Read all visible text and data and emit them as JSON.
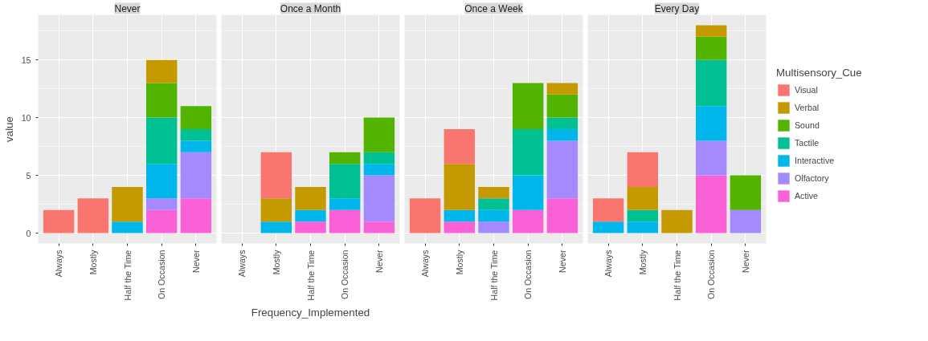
{
  "chart_data": [
    {
      "type": "bar",
      "title": "Never",
      "ylabel": "value",
      "stacked": true,
      "grid": true,
      "categories": [
        "Always",
        "Mostly",
        "Half the Time",
        "On Occasion",
        "Never"
      ],
      "ylim": [
        -0.9,
        18.9
      ],
      "yticks": [
        0,
        5,
        10,
        15
      ],
      "series": [
        {
          "color": "#fb61d7",
          "values": [
            null,
            null,
            null,
            2,
            3
          ]
        },
        {
          "color": "#a58aff",
          "values": [
            null,
            null,
            null,
            1,
            4
          ]
        },
        {
          "color": "#00b6eb",
          "values": [
            null,
            null,
            1,
            3,
            1
          ]
        },
        {
          "color": "#00c094",
          "values": [
            null,
            null,
            null,
            4,
            1
          ]
        },
        {
          "color": "#53b400",
          "values": [
            null,
            null,
            null,
            3,
            2
          ]
        },
        {
          "color": "#c49a00",
          "values": [
            null,
            null,
            3,
            2,
            null
          ]
        },
        {
          "color": "#f8766d",
          "values": [
            2,
            3,
            null,
            null,
            null
          ]
        }
      ]
    },
    {
      "type": "bar",
      "title": "Once a Month",
      "xlabel": "Frequency_Implemented",
      "stacked": true,
      "grid": true,
      "tick_labels": "x",
      "categories": [
        "Always",
        "Mostly",
        "Half the Time",
        "On Occasion",
        "Never"
      ],
      "ylim": [
        -0.9,
        18.9
      ],
      "yticks": [
        0,
        5,
        10,
        15
      ],
      "series": [
        {
          "color": "#fb61d7",
          "values": [
            null,
            null,
            1,
            2,
            1
          ]
        },
        {
          "color": "#a58aff",
          "values": [
            null,
            null,
            null,
            null,
            4
          ]
        },
        {
          "color": "#00b6eb",
          "values": [
            null,
            1,
            1,
            1,
            1
          ]
        },
        {
          "color": "#00c094",
          "values": [
            null,
            null,
            null,
            3,
            1
          ]
        },
        {
          "color": "#53b400",
          "values": [
            null,
            null,
            null,
            1,
            3
          ]
        },
        {
          "color": "#c49a00",
          "values": [
            null,
            2,
            2,
            null,
            null
          ]
        },
        {
          "color": "#f8766d",
          "values": [
            null,
            4,
            null,
            null,
            null
          ]
        }
      ]
    },
    {
      "type": "bar",
      "title": "Once a Week",
      "stacked": true,
      "grid": true,
      "tick_labels": "x",
      "categories": [
        "Always",
        "Mostly",
        "Half the Time",
        "On Occasion",
        "Never"
      ],
      "ylim": [
        -0.9,
        18.9
      ],
      "yticks": [
        0,
        5,
        10,
        15
      ],
      "series": [
        {
          "color": "#fb61d7",
          "values": [
            null,
            1,
            null,
            2,
            3
          ]
        },
        {
          "color": "#a58aff",
          "values": [
            null,
            null,
            1,
            null,
            5
          ]
        },
        {
          "color": "#00b6eb",
          "values": [
            null,
            1,
            1,
            3,
            1
          ]
        },
        {
          "color": "#00c094",
          "values": [
            null,
            null,
            1,
            4,
            1
          ]
        },
        {
          "color": "#53b400",
          "values": [
            null,
            null,
            null,
            4,
            2
          ]
        },
        {
          "color": "#c49a00",
          "values": [
            null,
            4,
            1,
            null,
            1
          ]
        },
        {
          "color": "#f8766d",
          "values": [
            3,
            3,
            null,
            null,
            null
          ]
        }
      ]
    },
    {
      "type": "bar",
      "title": "Every Day",
      "legend_title": "Multisensory_Cue",
      "legend": "right",
      "stacked": true,
      "grid": true,
      "tick_labels": "x",
      "categories": [
        "Always",
        "Mostly",
        "Half the Time",
        "On Occasion",
        "Never"
      ],
      "ylim": [
        -0.9,
        18.9
      ],
      "yticks": [
        0,
        5,
        10,
        15
      ],
      "series": [
        {
          "name": "Active",
          "color": "#fb61d7",
          "values": [
            null,
            null,
            null,
            5,
            null
          ]
        },
        {
          "name": "Olfactory",
          "color": "#a58aff",
          "values": [
            null,
            null,
            null,
            3,
            2
          ]
        },
        {
          "name": "Interactive",
          "color": "#00b6eb",
          "values": [
            1,
            1,
            null,
            3,
            null
          ]
        },
        {
          "name": "Tactile",
          "color": "#00c094",
          "values": [
            null,
            1,
            null,
            4,
            null
          ]
        },
        {
          "name": "Sound",
          "color": "#53b400",
          "values": [
            null,
            null,
            null,
            2,
            3
          ]
        },
        {
          "name": "Verbal",
          "color": "#c49a00",
          "values": [
            null,
            2,
            2,
            1,
            null
          ]
        },
        {
          "name": "Visual",
          "color": "#f8766d",
          "values": [
            2,
            3,
            null,
            null,
            null
          ]
        }
      ]
    }
  ]
}
